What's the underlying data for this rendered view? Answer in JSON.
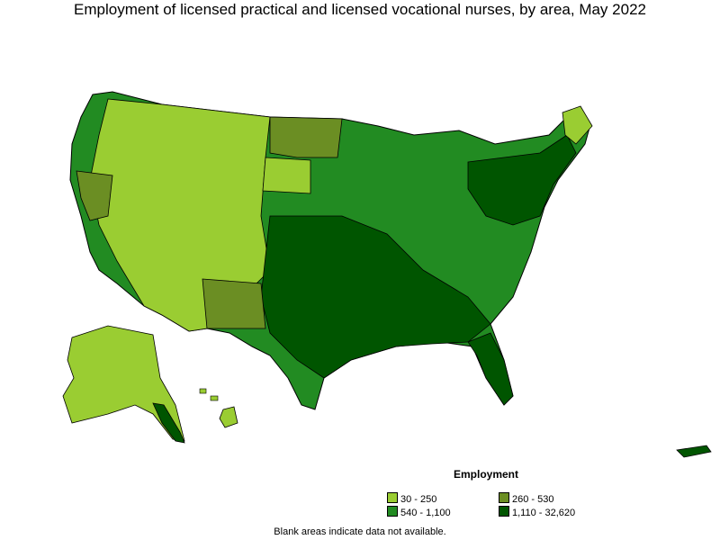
{
  "title": "Employment of licensed practical and licensed vocational nurses, by area, May 2022",
  "legend": {
    "title": "Employment",
    "items": [
      {
        "label": "30 - 250",
        "color": "#9ACD32"
      },
      {
        "label": "260 - 530",
        "color": "#6B8E23"
      },
      {
        "label": "540 - 1,100",
        "color": "#228B22"
      },
      {
        "label": "1,110 - 32,620",
        "color": "#005500"
      }
    ]
  },
  "footnote": "Blank areas indicate data not available.",
  "colors": {
    "border": "#000000",
    "background": "#ffffff"
  }
}
